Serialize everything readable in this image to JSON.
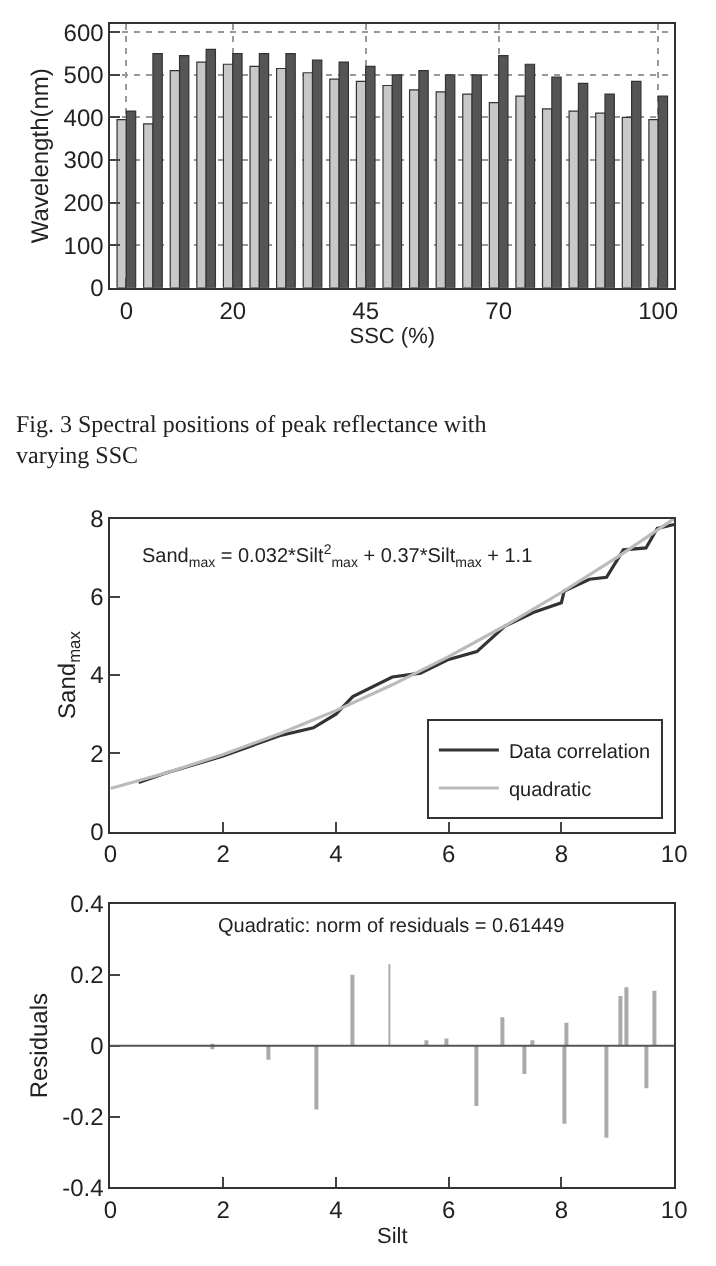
{
  "chart_data": [
    {
      "type": "bar",
      "xlabel": "SSC (%)",
      "ylabel": "Wavelength(nm)",
      "x": [
        0,
        5,
        10,
        15,
        20,
        25,
        30,
        35,
        40,
        45,
        50,
        55,
        60,
        65,
        70,
        75,
        80,
        85,
        90,
        95,
        100
      ],
      "series": [
        {
          "color": "#c8c8c8",
          "values": [
            395,
            385,
            510,
            530,
            525,
            520,
            515,
            505,
            490,
            485,
            475,
            465,
            460,
            455,
            435,
            450,
            420,
            415,
            410,
            400,
            395
          ]
        },
        {
          "color": "#555555",
          "values": [
            415,
            550,
            545,
            560,
            550,
            550,
            550,
            535,
            530,
            520,
            500,
            510,
            500,
            500,
            545,
            525,
            495,
            480,
            455,
            485,
            450
          ]
        }
      ],
      "xlim": [
        -3,
        103
      ],
      "xticks": [
        0,
        20,
        45,
        70,
        100
      ],
      "ylim": [
        0,
        620
      ],
      "yticks": [
        0,
        100,
        200,
        300,
        400,
        500,
        600
      ],
      "grid": true,
      "annotations": [
        "Fig. 3 Spectral positions of peak reflectance with varying SSC"
      ]
    },
    {
      "type": "line",
      "ylabel": "Sand$_{max}$",
      "series": [
        {
          "name": "Data correlation",
          "color": "#333333",
          "x": [
            0.5,
            1,
            2,
            3,
            3.6,
            4,
            4.3,
            5,
            5.5,
            6,
            6.5,
            7,
            7.5,
            8,
            8.05,
            8.5,
            8.8,
            9.1,
            9.5,
            9.7,
            10
          ],
          "values": [
            1.25,
            1.5,
            1.93,
            2.45,
            2.65,
            3.0,
            3.45,
            3.95,
            4.05,
            4.4,
            4.6,
            5.25,
            5.6,
            5.85,
            6.15,
            6.45,
            6.5,
            7.2,
            7.25,
            7.75,
            7.85
          ]
        },
        {
          "name": "quadratic",
          "color": "#bbbbbb",
          "x": [
            0,
            1,
            2,
            3,
            4,
            5,
            6,
            7,
            8,
            9,
            10
          ],
          "values": [
            1.1,
            1.5,
            1.97,
            2.5,
            3.09,
            3.75,
            4.47,
            5.26,
            6.11,
            7.02,
            8.0
          ]
        }
      ],
      "xlim": [
        0,
        10
      ],
      "xticks": [
        0,
        2,
        4,
        6,
        8,
        10
      ],
      "ylim": [
        0,
        8
      ],
      "yticks": [
        0,
        2,
        4,
        6,
        8
      ],
      "legend": "bottom right",
      "annotations": [
        "Sand$_{max}$ = 0.032*Silt$^{2}$$_{max}$ + 0.37*Silt$_{max}$ + 1.1"
      ]
    },
    {
      "type": "bar",
      "title": "Quadratic: norm of residuals = 0.61449",
      "xlabel": "Silt",
      "ylabel": "Residuals",
      "x": [
        1.8,
        2.8,
        3.65,
        4.3,
        4.95,
        5.6,
        5.95,
        6.5,
        6.95,
        7.35,
        7.5,
        8.05,
        8.1,
        8.8,
        9.05,
        9.15,
        9.5,
        9.65
      ],
      "values": [
        -0.01,
        -0.04,
        -0.18,
        0.2,
        0.23,
        0.015,
        0.02,
        -0.17,
        0.08,
        -0.08,
        0.015,
        -0.22,
        0.065,
        -0.26,
        0.14,
        0.165,
        -0.12,
        0.155
      ],
      "color": "#aaaaaa",
      "xlim": [
        0,
        10
      ],
      "xticks": [
        0,
        2,
        4,
        6,
        8,
        10
      ],
      "ylim": [
        -0.4,
        0.4
      ],
      "yticks": [
        -0.4,
        -0.2,
        0,
        0.2,
        0.4
      ],
      "ref_lines": [
        {
          "axis": "y",
          "value": 0,
          "color": "#555555"
        }
      ]
    }
  ]
}
